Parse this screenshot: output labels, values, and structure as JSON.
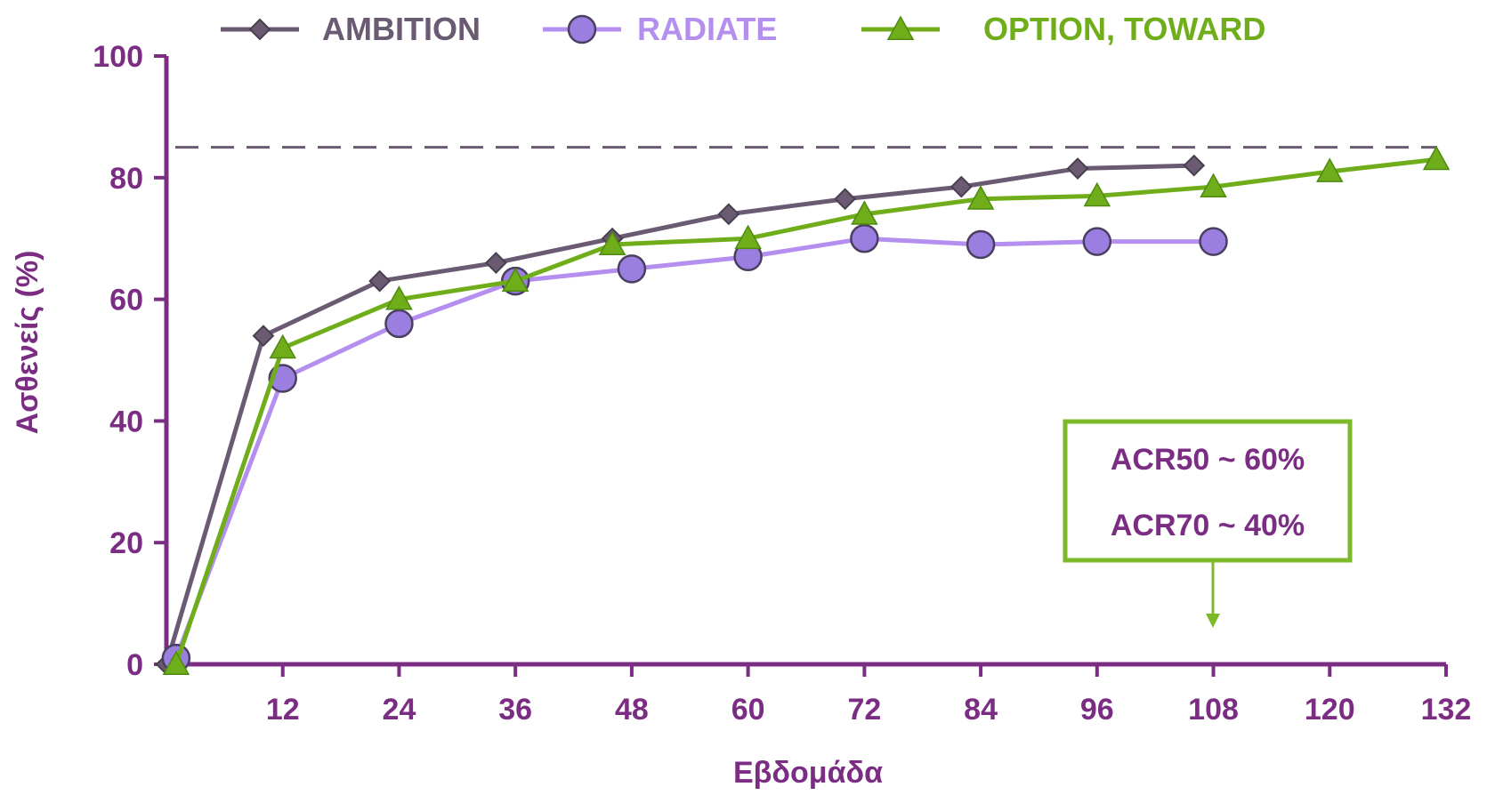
{
  "colors": {
    "axis": "#7b2d83",
    "ambition": "#6a5a72",
    "radiate": "#b48ff0",
    "radiate_marker": "#9a7fe0",
    "option": "#6fae1a",
    "reference_line": "#6a5a72",
    "annotation_border": "#7dba2a",
    "annotation_text": "#7b2d83"
  },
  "chart_data": {
    "type": "line",
    "xlabel": "Εβδομάδα",
    "ylabel": "Ασθενείς (%)",
    "xlim": [
      0,
      132
    ],
    "ylim": [
      0,
      100
    ],
    "x_ticks": [
      12,
      24,
      36,
      48,
      60,
      72,
      84,
      96,
      108,
      120,
      132
    ],
    "x_tick_labels": [
      "12",
      "24",
      "36",
      "48",
      "60",
      "72",
      "84",
      "96",
      "108",
      "120",
      "132"
    ],
    "y_ticks": [
      0,
      20,
      40,
      60,
      80,
      100
    ],
    "y_tick_labels": [
      "0",
      "20",
      "40",
      "60",
      "80",
      "100"
    ],
    "reference_line_y": 85,
    "legend_position": "top",
    "series": [
      {
        "name": "AMBITION",
        "marker": "diamond",
        "x": [
          0,
          10,
          22,
          34,
          46,
          58,
          70,
          82,
          94,
          106
        ],
        "values": [
          0,
          54,
          63,
          66,
          70,
          74,
          76.5,
          78.5,
          81.5,
          82
        ]
      },
      {
        "name": "RADIATE",
        "marker": "circle",
        "x": [
          1,
          12,
          24,
          36,
          48,
          60,
          72,
          84,
          96,
          108
        ],
        "values": [
          1,
          47,
          56,
          63,
          65,
          67,
          70,
          69,
          69.5,
          69.5
        ]
      },
      {
        "name": "OPTION, TOWARD",
        "marker": "triangle",
        "x": [
          1,
          12,
          24,
          36,
          46,
          60,
          72,
          84,
          96,
          108,
          120,
          131
        ],
        "values": [
          0,
          52,
          60,
          63,
          69,
          70,
          74,
          76.5,
          77,
          78.5,
          81,
          83
        ]
      }
    ],
    "annotation": {
      "lines": [
        "ACR50 ~ 60%",
        "ACR70 ~ 40%"
      ],
      "arrow_target_x": 108
    }
  }
}
